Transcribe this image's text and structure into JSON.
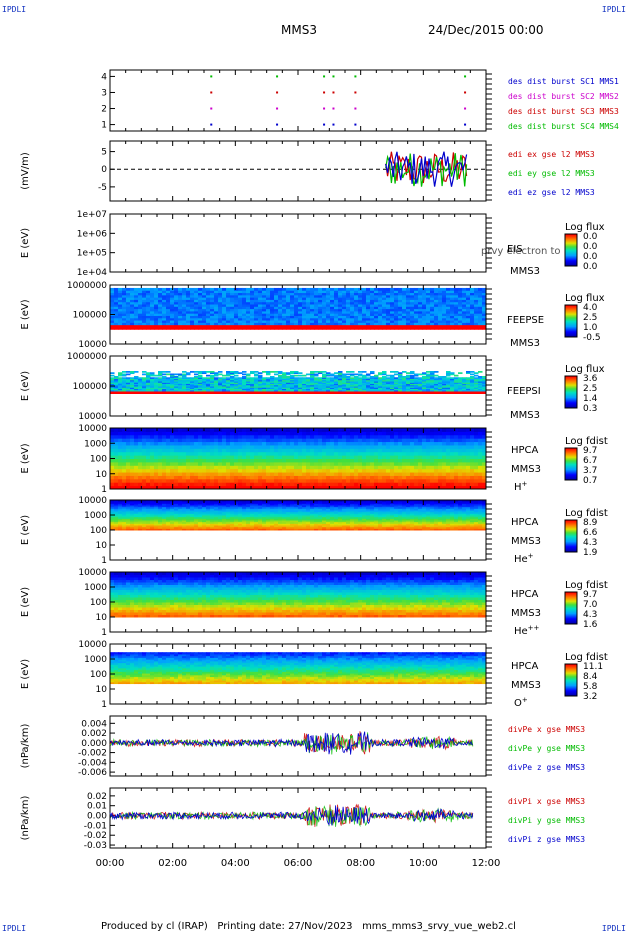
{
  "header": {
    "left_logo": "IPDLI",
    "right_logo": "IPDLI",
    "title": "MMS3",
    "date": "24/Dec/2015 00:00",
    "bottom_left_logo": "IPDLI",
    "bottom_right_logo": "IPDLI"
  },
  "footer": {
    "produced": "Produced by cl (IRAP)",
    "printing": "Printing date: 27/Nov/2023",
    "file": "mms_mms3_srvy_vue_web2.cl"
  },
  "time_axis": {
    "labels": [
      "00:00",
      "02:00",
      "04:00",
      "06:00",
      "08:00",
      "10:00",
      "12:00"
    ],
    "range_hours": [
      0,
      12
    ]
  },
  "chart_data": [
    {
      "type": "scatter",
      "panel": "des-dist-burst",
      "ylabel": "",
      "yticks": [
        "1",
        "2",
        "3",
        "4"
      ],
      "ylim": [
        0.6,
        4.4
      ],
      "legend": [
        {
          "text": "des dist burst SC1 MMS1",
          "color": "#0000cc"
        },
        {
          "text": "des dist burst SC2 MMS2",
          "color": "#cc00cc"
        },
        {
          "text": "des dist burst SC3 MMS3",
          "color": "#cc0000"
        },
        {
          "text": "des dist burst SC4 MMS4",
          "color": "#00bb00"
        }
      ],
      "series": [
        {
          "name": "des dist burst SC1 MMS1",
          "y": 1,
          "x_hours": [
            3.2,
            5.3,
            6.8,
            7.1,
            7.8,
            11.3
          ]
        },
        {
          "name": "des dist burst SC2 MMS2",
          "y": 2,
          "x_hours": [
            3.2,
            5.3,
            6.8,
            7.1,
            7.8,
            11.3
          ]
        },
        {
          "name": "des dist burst SC3 MMS3",
          "y": 3,
          "x_hours": [
            3.2,
            5.3,
            6.8,
            7.1,
            7.8,
            11.3
          ]
        },
        {
          "name": "des dist burst SC4 MMS4",
          "y": 4,
          "x_hours": [
            3.2,
            5.3,
            6.8,
            7.1,
            7.8,
            11.3
          ]
        }
      ]
    },
    {
      "type": "line",
      "panel": "edi-e",
      "ylabel": "(mV/m)",
      "yticks": [
        "5",
        "0",
        "-5"
      ],
      "ylim": [
        -9,
        8
      ],
      "dashed_zero": true,
      "legend": [
        {
          "text": "edi ex gse l2 MMS3",
          "color": "#cc0000"
        },
        {
          "text": "edi ey gse l2 MMS3",
          "color": "#00bb00"
        },
        {
          "text": "edi ez gse l2 MMS3",
          "color": "#0000cc"
        }
      ],
      "data_interval_hours": [
        8.8,
        11.4
      ]
    },
    {
      "type": "heatmap",
      "panel": "EIS",
      "ylabel": "E (eV)",
      "yticks": [
        "1e+07",
        "1e+06",
        "1e+05",
        "1e+04"
      ],
      "ylog_range": [
        4,
        7
      ],
      "side_labels": [
        "EIS",
        "MMS3"
      ],
      "overlay_text": "prvy electron to",
      "colorbar_title": "Log flux",
      "colorbar_ticks": [
        "0.0",
        "0.0",
        "0.0",
        "0.0"
      ],
      "empty": true
    },
    {
      "type": "heatmap",
      "panel": "FEEPSE",
      "ylabel": "E (eV)",
      "yticks": [
        "1000000",
        "100000",
        "10000"
      ],
      "ylog_range": [
        4,
        6
      ],
      "band_log": [
        4.5,
        5.9
      ],
      "side_labels": [
        "FEEPSE",
        "MMS3"
      ],
      "colorbar_title": "Log flux",
      "colorbar_ticks": [
        "4.0",
        "2.5",
        "1.0",
        "-0.5"
      ]
    },
    {
      "type": "heatmap",
      "panel": "FEEPSI",
      "ylabel": "E (eV)",
      "yticks": [
        "1000000",
        "100000",
        "10000"
      ],
      "ylog_range": [
        4,
        6
      ],
      "band_log": [
        4.75,
        5.5
      ],
      "side_labels": [
        "FEEPSI",
        "MMS3"
      ],
      "colorbar_title": "Log flux",
      "colorbar_ticks": [
        "3.6",
        "2.5",
        "1.4",
        "0.3"
      ]
    },
    {
      "type": "heatmap",
      "panel": "HPCA-H",
      "ylabel": "E (eV)",
      "yticks": [
        "10000",
        "1000",
        "100",
        "10",
        "1"
      ],
      "ylog_range": [
        0,
        4.4
      ],
      "band_log": [
        0,
        4.4
      ],
      "side_labels": [
        "HPCA",
        "MMS3",
        "H+"
      ],
      "colorbar_title": "Log fdist",
      "colorbar_ticks": [
        "9.7",
        "6.7",
        "3.7",
        "0.7"
      ]
    },
    {
      "type": "heatmap",
      "panel": "HPCA-He",
      "ylabel": "E (eV)",
      "yticks": [
        "10000",
        "1000",
        "100",
        "10",
        "1"
      ],
      "ylog_range": [
        0,
        4.4
      ],
      "band_log": [
        2.2,
        4.4
      ],
      "side_labels": [
        "HPCA",
        "MMS3",
        "He+"
      ],
      "colorbar_title": "Log fdist",
      "colorbar_ticks": [
        "8.9",
        "6.6",
        "4.3",
        "1.9"
      ]
    },
    {
      "type": "heatmap",
      "panel": "HPCA-He2",
      "ylabel": "E (eV)",
      "yticks": [
        "10000",
        "1000",
        "100",
        "10",
        "1"
      ],
      "ylog_range": [
        0,
        4.4
      ],
      "band_log": [
        1.1,
        4.4
      ],
      "side_labels": [
        "HPCA",
        "MMS3",
        "He++"
      ],
      "colorbar_title": "Log fdist",
      "colorbar_ticks": [
        "9.7",
        "7.0",
        "4.3",
        "1.6"
      ]
    },
    {
      "type": "heatmap",
      "panel": "HPCA-O",
      "ylabel": "E (eV)",
      "yticks": [
        "10000",
        "1000",
        "100",
        "10",
        "1"
      ],
      "ylog_range": [
        0,
        4.4
      ],
      "band_log": [
        1.5,
        3.8
      ],
      "side_labels": [
        "HPCA",
        "MMS3",
        "O+"
      ],
      "colorbar_title": "Log fdist",
      "colorbar_ticks": [
        "11.1",
        "8.4",
        "5.8",
        "3.2"
      ]
    },
    {
      "type": "line",
      "panel": "divPe",
      "ylabel": "(nPa/km)",
      "yticks": [
        "0.004",
        "0.002",
        "0.000",
        "-0.002",
        "-0.004",
        "-0.006"
      ],
      "ylim": [
        -0.0068,
        0.0055
      ],
      "legend": [
        {
          "text": "divPe x gse MMS3",
          "color": "#cc0000"
        },
        {
          "text": "divPe y gse MMS3",
          "color": "#00bb00"
        },
        {
          "text": "divPe z gse MMS3",
          "color": "#0000cc"
        }
      ],
      "noise_amplitude": 0.0008
    },
    {
      "type": "line",
      "panel": "divPi",
      "ylabel": "(nPa/km)",
      "yticks": [
        "0.02",
        "0.01",
        "0.00",
        "-0.01",
        "-0.02",
        "-0.03"
      ],
      "ylim": [
        -0.033,
        0.028
      ],
      "legend": [
        {
          "text": "divPi x gse MMS3",
          "color": "#cc0000"
        },
        {
          "text": "divPi y gse MMS3",
          "color": "#00bb00"
        },
        {
          "text": "divPi z gse MMS3",
          "color": "#0000cc"
        }
      ],
      "noise_amplitude": 0.004
    }
  ]
}
